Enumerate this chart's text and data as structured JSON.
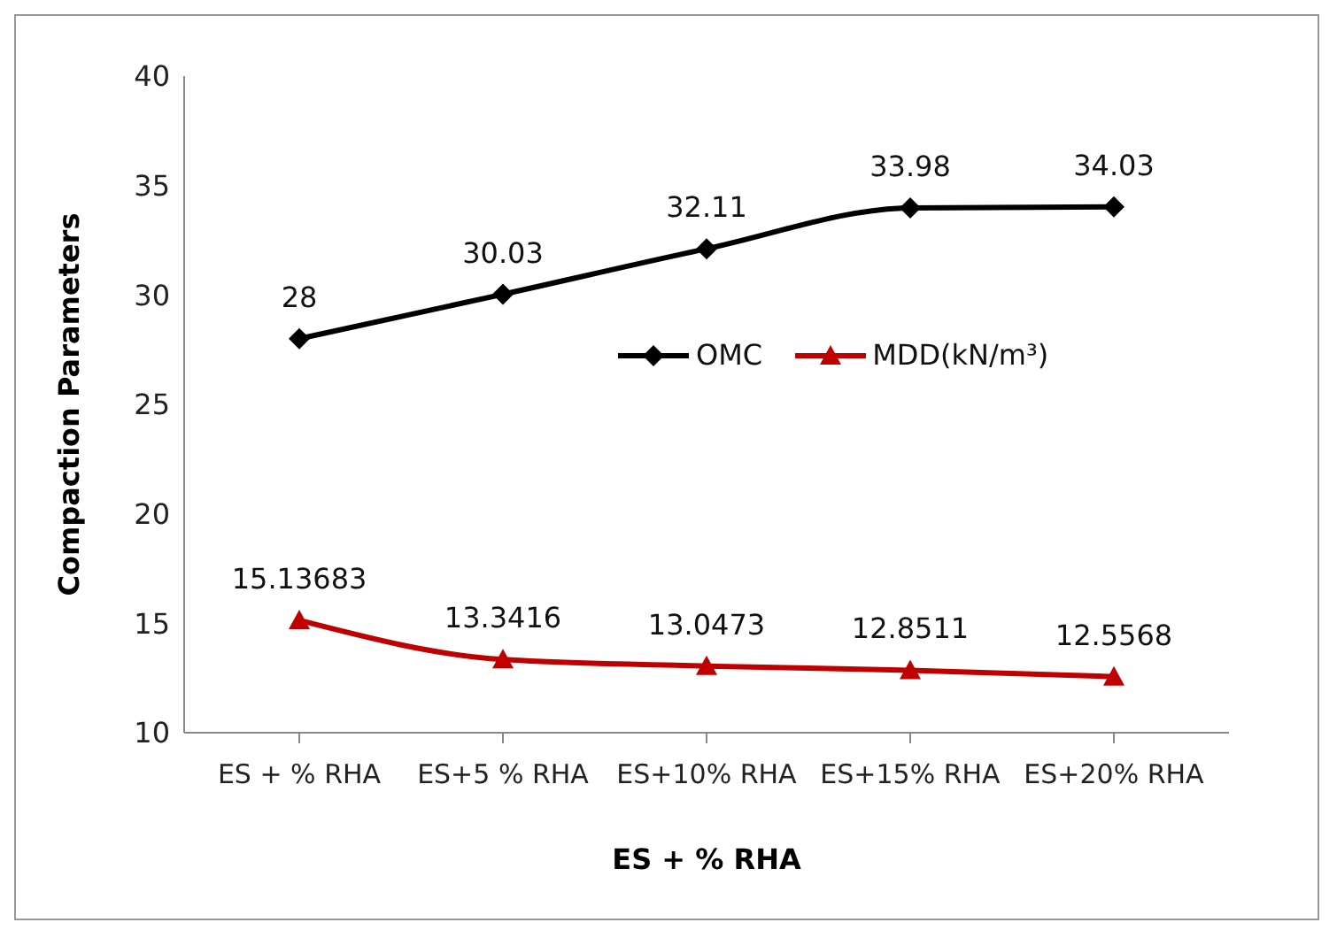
{
  "chart_data": {
    "type": "line",
    "xlabel": "ES + % RHA",
    "ylabel": "Compaction Parameters",
    "categories": [
      "ES + % RHA",
      "ES+5 % RHA",
      "ES+10% RHA",
      "ES+15% RHA",
      "ES+20% RHA"
    ],
    "series": [
      {
        "name": "OMC",
        "color": "#000000",
        "marker": "diamond",
        "values": [
          28,
          30.03,
          32.11,
          33.98,
          34.03
        ]
      },
      {
        "name": "MDD(kN/m³)",
        "color": "#c00000",
        "marker": "triangle",
        "values": [
          15.13683,
          13.3416,
          13.0473,
          12.8511,
          12.5568
        ]
      }
    ],
    "ylim": [
      10,
      40
    ],
    "yticks": [
      10,
      15,
      20,
      25,
      30,
      35,
      40
    ],
    "legend": "right",
    "data_labels": true,
    "line_style": "solid"
  }
}
